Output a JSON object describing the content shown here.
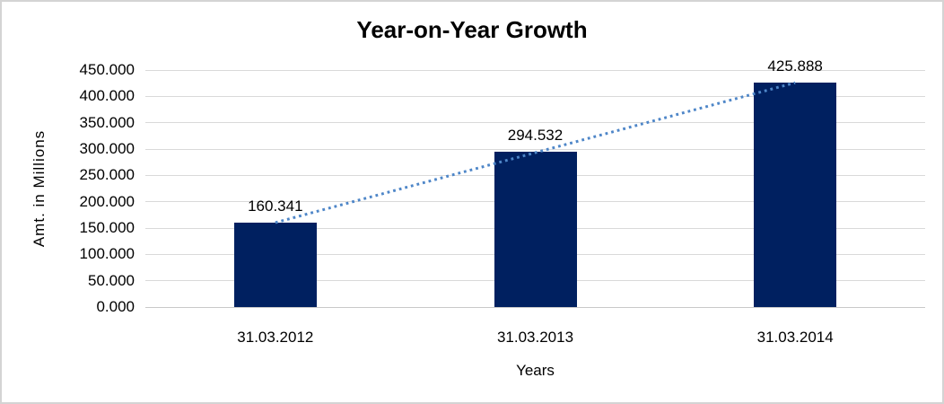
{
  "chart_data": {
    "type": "bar",
    "title": "Year-on-Year Growth",
    "xlabel": "Years",
    "ylabel": "Amt. in Millions",
    "categories": [
      "31.03.2012",
      "31.03.2013",
      "31.03.2014"
    ],
    "values": [
      160.341,
      294.532,
      425.888
    ],
    "data_labels": [
      "160.341",
      "294.532",
      "425.888"
    ],
    "ylim": [
      0,
      450
    ],
    "ytick_step": 50,
    "ytick_labels": [
      "450.000",
      "400.000",
      "350.000",
      "300.000",
      "250.000",
      "200.000",
      "150.000",
      "100.000",
      "50.000",
      "0.000"
    ],
    "grid": true,
    "legend": "none",
    "trendline": {
      "style": "dotted",
      "from_index": 0,
      "to_index": 2,
      "color": "#4e86c8"
    },
    "colors": {
      "bar": "#002060",
      "gridline": "#d9d9d9",
      "axisline": "#c9c9c9",
      "border": "#d4d4d4",
      "background": "#ffffff",
      "text": "#000000"
    }
  }
}
